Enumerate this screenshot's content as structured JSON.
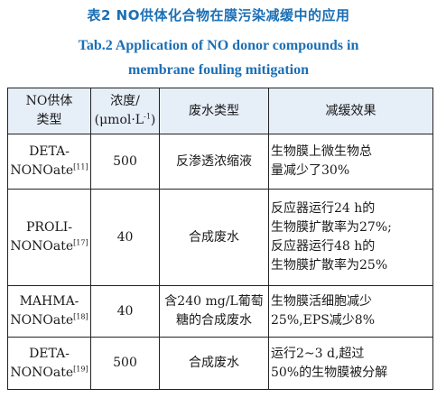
{
  "caption": {
    "cn": "表2   NO供体化合物在膜污染减缓中的应用",
    "en_line1": "Tab.2   Application of NO donor compounds in",
    "en_line2": "membrane fouling mitigation"
  },
  "headers": {
    "type_line1": "NO供体",
    "type_line2": "类型",
    "conc_line1": "浓度/",
    "conc_line2": "(μmol·L",
    "conc_sup": "-1",
    "conc_end": ")",
    "wastewater": "废水类型",
    "effect": "减缓效果"
  },
  "rows": [
    {
      "name_line1": "DETA-",
      "name_line2": "NONOate",
      "ref": "[11]",
      "conc": "500",
      "wastewater": "反渗透浓缩液",
      "effect": [
        "生物膜上微生物总",
        "量减少了30%"
      ]
    },
    {
      "name_line1": "PROLI-",
      "name_line2": "NONOate",
      "ref": "[17]",
      "conc": "40",
      "wastewater": "合成废水",
      "effect": [
        "反应器运行24 h的",
        "生物膜扩散率为27%;",
        "反应器运行48 h的",
        "生物膜扩散率为25%"
      ]
    },
    {
      "name_line1": "MAHMA-",
      "name_line2": "NONOate",
      "ref": "[18]",
      "conc": "40",
      "wastewater": [
        "含240 mg/L葡萄",
        "糖的合成废水"
      ],
      "effect": [
        "生物膜活细胞减少",
        "25%,EPS减少8%"
      ]
    },
    {
      "name_line1": "DETA-",
      "name_line2": "NONOate",
      "ref": "[19]",
      "conc": "500",
      "wastewater": "合成废水",
      "effect": [
        "运行2~3 d,超过",
        "50%的生物膜被分解"
      ]
    }
  ]
}
